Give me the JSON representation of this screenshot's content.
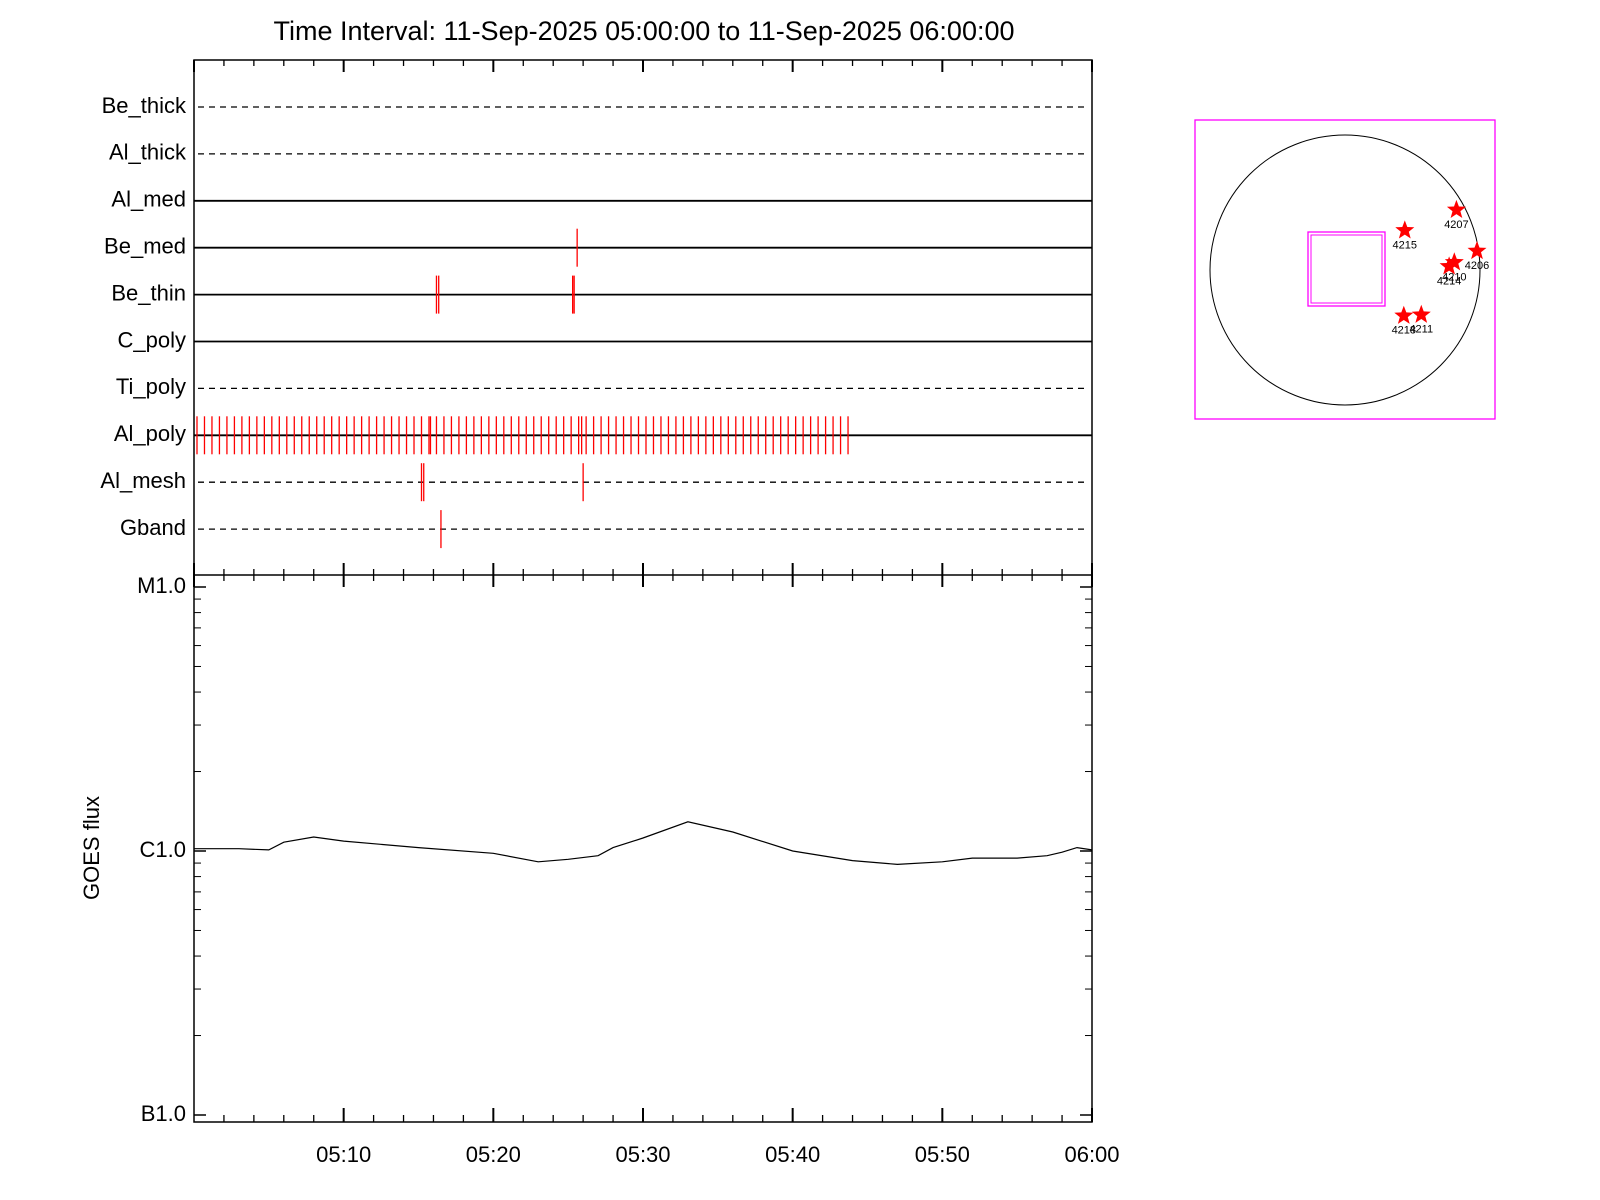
{
  "chart_data": [
    {
      "type": "timeline",
      "title": "Time Interval: 11-Sep-2025 05:00:00 to 11-Sep-2025 06:00:00",
      "categories": [
        "Be_thick",
        "Al_thick",
        "Al_med",
        "Be_med",
        "Be_thin",
        "C_poly",
        "Ti_poly",
        "Al_poly",
        "Al_mesh",
        "Gband"
      ],
      "line_styles": [
        "dashed",
        "dashed",
        "solid",
        "solid",
        "solid",
        "solid",
        "dashed",
        "solid",
        "dashed",
        "dashed"
      ],
      "events": [
        [],
        [],
        [],
        [
          25.6
        ],
        [
          16.2,
          16.35,
          25.3,
          25.4
        ],
        [],
        [],
        [
          0.2,
          0.7,
          1.2,
          1.7,
          2.2,
          2.7,
          3.2,
          3.7,
          4.2,
          4.7,
          5.2,
          5.7,
          6.2,
          6.7,
          7.2,
          7.7,
          8.2,
          8.7,
          9.2,
          9.7,
          10.2,
          10.7,
          11.2,
          11.7,
          12.2,
          12.7,
          13.2,
          13.7,
          14.2,
          14.7,
          15.2,
          15.7,
          15.8,
          16.2,
          16.7,
          17.2,
          17.7,
          18.2,
          18.7,
          19.2,
          19.7,
          20.2,
          20.7,
          21.2,
          21.7,
          22.2,
          22.7,
          23.2,
          23.7,
          24.2,
          24.7,
          25.2,
          25.7,
          25.9,
          26.2,
          26.7,
          27.2,
          27.7,
          28.2,
          28.7,
          29.2,
          29.7,
          30.2,
          30.7,
          31.2,
          31.7,
          32.2,
          32.7,
          33.2,
          33.7,
          34.2,
          34.7,
          35.2,
          35.7,
          36.2,
          36.7,
          37.2,
          37.7,
          38.2,
          38.7,
          39.2,
          39.7,
          40.2,
          40.7,
          41.2,
          41.7,
          42.2,
          42.7,
          43.2,
          43.7
        ],
        [
          15.2,
          15.35,
          26.0
        ],
        [
          16.5
        ]
      ],
      "color": "#ff0000",
      "xlim": [
        0,
        60
      ],
      "xticks": [
        0,
        10,
        20,
        30,
        40,
        50,
        60
      ],
      "xminor_ticks": [
        2,
        4,
        6,
        8,
        12,
        14,
        16,
        18,
        22,
        24,
        26,
        28,
        32,
        34,
        36,
        38,
        42,
        44,
        46,
        48,
        52,
        54,
        56,
        58
      ]
    },
    {
      "type": "line",
      "ylabel": "GOES flux",
      "x": [
        0,
        3,
        5,
        6,
        8,
        10,
        15,
        20,
        23,
        25,
        27,
        28,
        30,
        33,
        36,
        40,
        44,
        47,
        50,
        52,
        55,
        57,
        58,
        59,
        60
      ],
      "values": [
        1.02e-06,
        1.02e-06,
        1.01e-06,
        1.08e-06,
        1.13e-06,
        1.09e-06,
        1.03e-06,
        9.8e-07,
        9.1e-07,
        9.3e-07,
        9.6e-07,
        1.03e-06,
        1.12e-06,
        1.29e-06,
        1.18e-06,
        1e-06,
        9.2e-07,
        8.9e-07,
        9.1e-07,
        9.4e-07,
        9.4e-07,
        9.6e-07,
        9.9e-07,
        1.03e-06,
        1.01e-06
      ],
      "color": "#000000",
      "log_y": true,
      "ylim": [
        1e-07,
        1e-05
      ],
      "yticks": [
        {
          "value": 1e-07,
          "label": "B1.0"
        },
        {
          "value": 1e-06,
          "label": "C1.0"
        },
        {
          "value": 1e-05,
          "label": "M1.0"
        }
      ],
      "yminor_ticks": [
        2e-07,
        3e-07,
        4e-07,
        5e-07,
        6e-07,
        7e-07,
        8e-07,
        9e-07,
        2e-06,
        3e-06,
        4e-06,
        5e-06,
        6e-06,
        7e-06,
        8e-06,
        9e-06
      ],
      "xlim": [
        0,
        60
      ],
      "xticks": [
        {
          "value": 10,
          "label": "05:10"
        },
        {
          "value": 20,
          "label": "05:20"
        },
        {
          "value": 30,
          "label": "05:30"
        },
        {
          "value": 40,
          "label": "05:40"
        },
        {
          "value": 50,
          "label": "05:50"
        },
        {
          "value": 60,
          "label": "06:00"
        }
      ],
      "xminor_ticks": [
        2,
        4,
        6,
        8,
        12,
        14,
        16,
        18,
        22,
        24,
        26,
        28,
        32,
        34,
        36,
        38,
        42,
        44,
        46,
        48,
        52,
        54,
        56,
        58
      ]
    },
    {
      "type": "scatter",
      "labels": [
        "4207",
        "4215",
        "4206",
        "4210",
        "4214",
        "4211",
        "4218"
      ],
      "x": [
        792,
        425,
        938,
        777,
        740,
        542,
        418
      ],
      "y": [
        425,
        279,
        132,
        51,
        22,
        -323,
        -330
      ],
      "color": "#ff0000",
      "xlim": [
        -1066,
        1066
      ],
      "ylim": [
        -1066,
        1066
      ]
    }
  ]
}
